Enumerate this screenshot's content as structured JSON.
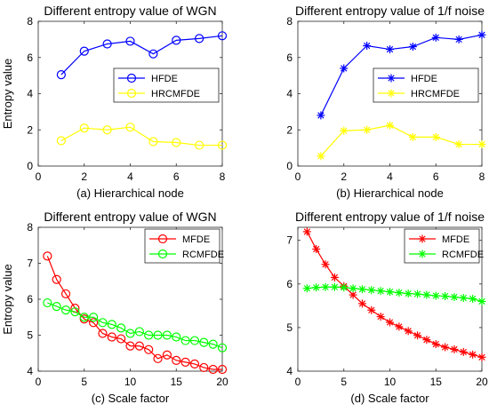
{
  "chart_data": [
    {
      "type": "line",
      "title": "Different entropy value of WGN",
      "xlabel": "(a) Hierarchical node",
      "ylabel": "Entropy value",
      "xlim": [
        0,
        8
      ],
      "ylim": [
        0,
        8
      ],
      "xticks": [
        0,
        2,
        4,
        6,
        8
      ],
      "yticks": [
        0,
        2,
        4,
        6,
        8
      ],
      "x": [
        1,
        2,
        3,
        4,
        5,
        6,
        7,
        8
      ],
      "marker": "circle",
      "legend_position": "right",
      "series": [
        {
          "name": "HFDE",
          "color": "#0000ff",
          "values": [
            5.05,
            6.35,
            6.75,
            6.9,
            6.2,
            6.95,
            7.05,
            7.2
          ]
        },
        {
          "name": "HRCMFDE",
          "color": "#ffff00",
          "values": [
            1.4,
            2.1,
            2.0,
            2.15,
            1.35,
            1.3,
            1.15,
            1.15
          ]
        }
      ]
    },
    {
      "type": "line",
      "title": "Different entropy value of 1/f noise",
      "xlabel": "(b) Hierarchical node",
      "ylabel": "",
      "xlim": [
        0,
        8
      ],
      "ylim": [
        0,
        8
      ],
      "xticks": [
        0,
        2,
        4,
        6,
        8
      ],
      "yticks": [
        0,
        2,
        4,
        6,
        8
      ],
      "x": [
        1,
        2,
        3,
        4,
        5,
        6,
        7,
        8
      ],
      "marker": "asterisk",
      "legend_position": "right",
      "series": [
        {
          "name": "HFDE",
          "color": "#0000ff",
          "values": [
            2.8,
            5.4,
            6.65,
            6.45,
            6.6,
            7.1,
            7.0,
            7.25
          ]
        },
        {
          "name": "HRCMFDE",
          "color": "#ffff00",
          "values": [
            0.55,
            1.95,
            2.0,
            2.25,
            1.6,
            1.6,
            1.2,
            1.2
          ]
        }
      ]
    },
    {
      "type": "line",
      "title": "Different entropy value of WGN",
      "xlabel": "(c) Scale factor",
      "ylabel": "Entropy value",
      "xlim": [
        0,
        20
      ],
      "ylim": [
        4,
        8
      ],
      "xticks": [
        0,
        5,
        10,
        15,
        20
      ],
      "yticks": [
        4,
        5,
        6,
        7,
        8
      ],
      "x": [
        1,
        2,
        3,
        4,
        5,
        6,
        7,
        8,
        9,
        10,
        11,
        12,
        13,
        14,
        15,
        16,
        17,
        18,
        19,
        20
      ],
      "marker": "circle",
      "legend_position": "top-right",
      "series": [
        {
          "name": "MFDE",
          "color": "#ff0000",
          "values": [
            7.2,
            6.55,
            6.15,
            5.75,
            5.45,
            5.35,
            5.05,
            4.95,
            4.9,
            4.7,
            4.7,
            4.6,
            4.35,
            4.45,
            4.3,
            4.25,
            4.2,
            4.1,
            4.05,
            4.05
          ]
        },
        {
          "name": "RCMFDE",
          "color": "#00ff00",
          "values": [
            5.9,
            5.8,
            5.7,
            5.65,
            5.5,
            5.5,
            5.35,
            5.3,
            5.2,
            5.05,
            5.1,
            5.0,
            5.0,
            5.0,
            4.95,
            4.85,
            4.85,
            4.8,
            4.75,
            4.65
          ]
        }
      ]
    },
    {
      "type": "line",
      "title": "Different entropy value of 1/f noise",
      "xlabel": "(d) Scale factor",
      "ylabel": "",
      "xlim": [
        0,
        20
      ],
      "ylim": [
        4,
        7.3
      ],
      "xticks": [
        0,
        5,
        10,
        15,
        20
      ],
      "yticks": [
        4,
        5,
        6,
        7
      ],
      "x": [
        1,
        2,
        3,
        4,
        5,
        6,
        7,
        8,
        9,
        10,
        11,
        12,
        13,
        14,
        15,
        16,
        17,
        18,
        19,
        20
      ],
      "marker": "asterisk",
      "legend_position": "top-right",
      "series": [
        {
          "name": "MFDE",
          "color": "#ff0000",
          "values": [
            7.2,
            6.8,
            6.45,
            6.15,
            5.95,
            5.75,
            5.55,
            5.4,
            5.25,
            5.12,
            5.02,
            4.92,
            4.82,
            4.72,
            4.62,
            4.55,
            4.5,
            4.44,
            4.38,
            4.32
          ]
        },
        {
          "name": "RCMFDE",
          "color": "#00ff00",
          "values": [
            5.9,
            5.92,
            5.93,
            5.93,
            5.92,
            5.9,
            5.88,
            5.86,
            5.84,
            5.82,
            5.8,
            5.78,
            5.77,
            5.75,
            5.73,
            5.72,
            5.7,
            5.68,
            5.66,
            5.6
          ]
        }
      ]
    }
  ]
}
